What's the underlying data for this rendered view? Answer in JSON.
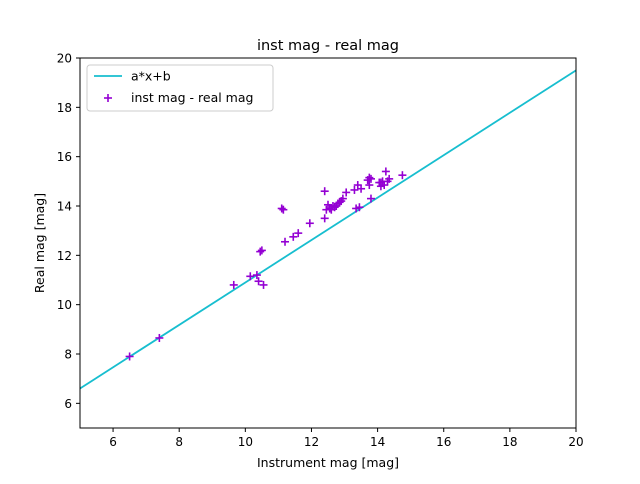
{
  "chart_data": {
    "type": "scatter",
    "title": "inst mag - real mag",
    "xlabel": "Instrument mag [mag]",
    "ylabel": "Real mag [mag]",
    "xlim": [
      5,
      20
    ],
    "ylim": [
      5,
      20
    ],
    "xticks": [
      6,
      8,
      10,
      12,
      14,
      16,
      18,
      20
    ],
    "yticks": [
      6,
      8,
      10,
      12,
      14,
      16,
      18,
      20
    ],
    "grid": false,
    "legend_position": "top-left",
    "series": [
      {
        "name": "a*x+b",
        "kind": "line",
        "color": "#17becf",
        "x": [
          5,
          20
        ],
        "y": [
          6.6,
          19.5
        ]
      },
      {
        "name": "inst mag - real mag",
        "kind": "scatter",
        "marker": "plus",
        "color": "#9400d3",
        "x": [
          6.5,
          7.4,
          9.65,
          10.15,
          10.35,
          10.4,
          10.45,
          10.5,
          10.55,
          11.1,
          11.15,
          11.2,
          11.45,
          11.6,
          11.95,
          12.4,
          12.4,
          12.45,
          12.5,
          12.55,
          12.6,
          12.65,
          12.7,
          12.75,
          12.8,
          12.85,
          12.9,
          12.95,
          13.05,
          13.3,
          13.35,
          13.4,
          13.45,
          13.5,
          13.7,
          13.75,
          13.75,
          13.8,
          13.8,
          14.05,
          14.1,
          14.1,
          14.15,
          14.2,
          14.25,
          14.3,
          14.35,
          14.75
        ],
        "y": [
          7.9,
          8.65,
          10.8,
          11.15,
          11.2,
          10.95,
          12.15,
          12.2,
          10.8,
          13.9,
          13.85,
          12.55,
          12.75,
          12.9,
          13.3,
          14.6,
          13.5,
          13.85,
          14.05,
          13.9,
          13.85,
          14.0,
          13.95,
          14.0,
          14.1,
          14.15,
          14.2,
          14.3,
          14.55,
          14.65,
          13.9,
          14.85,
          13.95,
          14.7,
          15.05,
          15.15,
          14.85,
          15.1,
          14.3,
          14.95,
          14.8,
          14.95,
          15.0,
          14.85,
          15.4,
          15.0,
          15.1,
          15.25
        ]
      }
    ]
  }
}
